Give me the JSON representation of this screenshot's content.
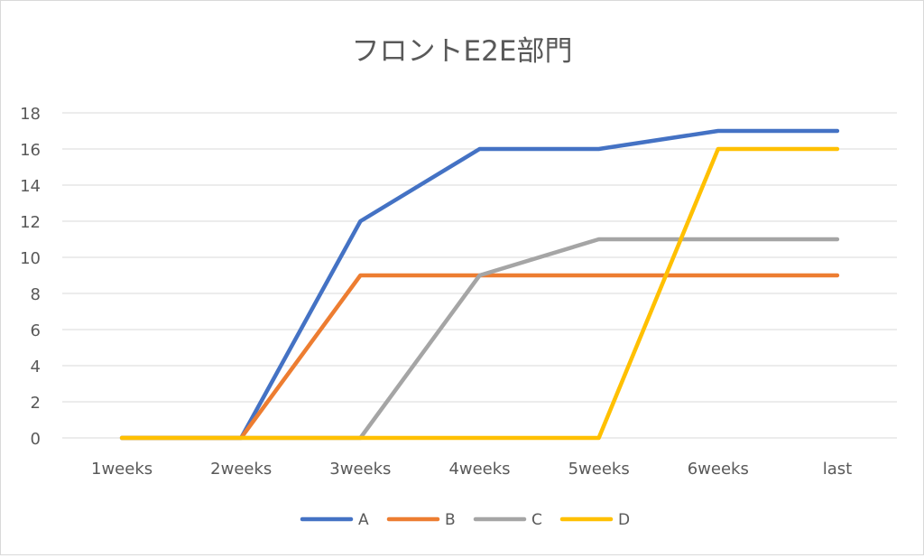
{
  "chart_data": {
    "type": "line",
    "title": "フロントE2E部門",
    "xlabel": "",
    "ylabel": "",
    "categories": [
      "1weeks",
      "2weeks",
      "3weeks",
      "4weeks",
      "5weeks",
      "6weeks",
      "last"
    ],
    "yticks": [
      "0",
      "2",
      "4",
      "6",
      "8",
      "10",
      "12",
      "14",
      "16",
      "18"
    ],
    "ylim": [
      0,
      18
    ],
    "grid": true,
    "legend_position": "bottom",
    "series": [
      {
        "name": "A",
        "color": "#4472c4",
        "values": [
          0,
          0,
          12,
          16,
          16,
          17,
          17
        ]
      },
      {
        "name": "B",
        "color": "#ed7d31",
        "values": [
          0,
          0,
          9,
          9,
          9,
          9,
          9
        ]
      },
      {
        "name": "C",
        "color": "#a5a5a5",
        "values": [
          0,
          0,
          0,
          9,
          11,
          11,
          11
        ]
      },
      {
        "name": "D",
        "color": "#ffc000",
        "values": [
          0,
          0,
          0,
          0,
          0,
          16,
          16
        ]
      }
    ]
  }
}
